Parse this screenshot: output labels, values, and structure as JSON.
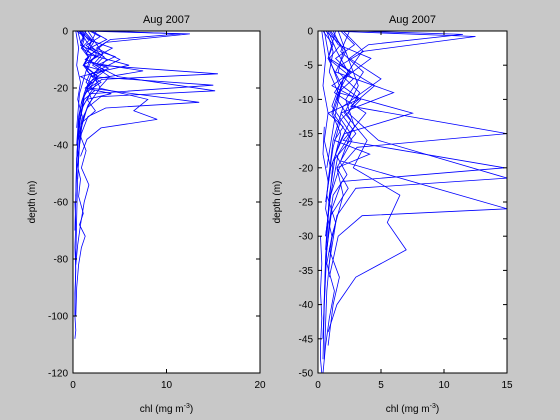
{
  "chart_data": [
    {
      "type": "line",
      "title": "Aug 2007",
      "xlabel": "chl (mg m",
      "xlabel_exponent": "-3",
      "xlabel_suffix": ")",
      "ylabel": "depth (m)",
      "xlim": [
        0,
        20
      ],
      "ylim": [
        -120,
        0
      ],
      "xticks": [
        0,
        10,
        20
      ],
      "yticks": [
        0,
        -20,
        -40,
        -60,
        -80,
        -100,
        -120
      ],
      "line_color": "#0000ff",
      "grid": false,
      "series": [
        {
          "x": [
            0.6,
            1.8,
            0.9,
            2.6,
            1.1,
            3.2,
            0.8,
            2.0,
            1.3,
            4.1,
            1.5,
            2.4,
            1.0,
            0.7,
            0.5,
            0.4,
            0.3,
            0.2
          ],
          "y": [
            0,
            -3,
            -6,
            -9,
            -12,
            -14,
            -16,
            -18,
            -20,
            -22,
            -24,
            -28,
            -32,
            -40,
            -50,
            -65,
            -80,
            -100
          ]
        },
        {
          "x": [
            1.0,
            2.2,
            1.4,
            6.0,
            1.8,
            3.0,
            1.2,
            0.9,
            0.6,
            0.4,
            0.3
          ],
          "y": [
            0,
            -4,
            -8,
            -12,
            -15,
            -18,
            -22,
            -28,
            -36,
            -48,
            -60
          ]
        },
        {
          "x": [
            0.4,
            1.2,
            0.8,
            2.8,
            1.6,
            7.5,
            2.1,
            1.4,
            0.9,
            0.6,
            0.4,
            0.2
          ],
          "y": [
            0,
            -2,
            -5,
            -8,
            -11,
            -14,
            -17,
            -20,
            -25,
            -32,
            -45,
            -70
          ]
        },
        {
          "x": [
            2.0,
            3.6,
            1.8,
            4.5,
            2.6,
            15.5,
            3.1,
            1.7,
            1.0,
            0.6,
            0.4
          ],
          "y": [
            0,
            -3,
            -6,
            -9,
            -12,
            -15,
            -17,
            -20,
            -24,
            -30,
            -40
          ]
        },
        {
          "x": [
            0.8,
            1.5,
            2.4,
            1.3,
            3.8,
            2.0,
            15.0,
            1.9,
            1.1,
            0.7,
            0.4,
            0.3
          ],
          "y": [
            0,
            -4,
            -7,
            -10,
            -13,
            -16,
            -19,
            -22,
            -26,
            -32,
            -45,
            -58
          ]
        },
        {
          "x": [
            1.2,
            2.0,
            1.6,
            3.3,
            2.4,
            4.8,
            15.2,
            3.0,
            1.5,
            0.8,
            0.5
          ],
          "y": [
            0,
            -3,
            -6,
            -9,
            -12,
            -16,
            -21,
            -23,
            -27,
            -35,
            -48
          ]
        },
        {
          "x": [
            0.5,
            0.9,
            1.7,
            1.1,
            2.6,
            1.8,
            13.5,
            3.5,
            1.6,
            0.9,
            0.5
          ],
          "y": [
            0,
            -5,
            -9,
            -12,
            -16,
            -20,
            -25,
            -27,
            -30,
            -36,
            -44
          ]
        },
        {
          "x": [
            1.6,
            2.4,
            3.2,
            2.1,
            3.9,
            2.8,
            8.0,
            6.5,
            9.0,
            3.0,
            1.5,
            0.8
          ],
          "y": [
            0,
            -4,
            -8,
            -12,
            -16,
            -20,
            -24,
            -28,
            -31,
            -34,
            -38,
            -44
          ]
        },
        {
          "x": [
            3.0,
            11.5,
            4.0,
            2.5,
            5.0,
            2.0,
            1.2,
            0.8,
            0.5
          ],
          "y": [
            0,
            -1,
            -3,
            -6,
            -10,
            -15,
            -22,
            -30,
            -40
          ]
        },
        {
          "x": [
            1.0,
            12.5,
            3.5,
            2.0,
            1.4,
            0.7,
            0.4
          ],
          "y": [
            0,
            -1,
            -4,
            -8,
            -14,
            -22,
            -34
          ]
        },
        {
          "x": [
            0.7,
            1.2,
            0.9,
            1.6,
            1.1,
            1.8,
            1.4,
            2.3,
            1.2,
            0.9,
            0.6,
            0.4
          ],
          "y": [
            0,
            -3,
            -6,
            -9,
            -12,
            -15,
            -18,
            -21,
            -24,
            -28,
            -34,
            -45
          ]
        },
        {
          "x": [
            1.4,
            0.8,
            1.9,
            1.2,
            2.7,
            1.5,
            2.0,
            1.1,
            0.7,
            0.5
          ],
          "y": [
            0,
            -4,
            -8,
            -12,
            -16,
            -20,
            -24,
            -30,
            -38,
            -52
          ]
        },
        {
          "x": [
            0.3,
            0.6,
            0.4,
            0.8,
            0.5,
            1.0,
            0.7,
            1.4,
            0.9,
            1.7,
            1.2,
            0.8,
            0.5,
            0.3
          ],
          "y": [
            0,
            -6,
            -12,
            -18,
            -24,
            -30,
            -36,
            -42,
            -48,
            -54,
            -60,
            -68,
            -75,
            -82
          ]
        },
        {
          "x": [
            0.5,
            0.4,
            0.8,
            0.6,
            1.1,
            0.7,
            1.3,
            0.9,
            0.6,
            0.4,
            0.3
          ],
          "y": [
            -40,
            -46,
            -52,
            -58,
            -64,
            -68,
            -72,
            -76,
            -82,
            -90,
            -100
          ]
        },
        {
          "x": [
            0.2,
            0.3,
            0.2,
            0.3,
            0.2,
            0.2,
            0.3,
            0.2
          ],
          "y": [
            -60,
            -68,
            -76,
            -84,
            -92,
            -100,
            -105,
            -108
          ]
        },
        {
          "x": [
            2.5,
            1.8,
            3.6,
            2.2,
            2.9,
            1.6,
            1.0,
            0.6
          ],
          "y": [
            0,
            -5,
            -10,
            -15,
            -20,
            -26,
            -32,
            -38
          ]
        },
        {
          "x": [
            1.8,
            2.9,
            1.4,
            2.5,
            1.9,
            3.4,
            1.8,
            1.2,
            0.8
          ],
          "y": [
            0,
            -2,
            -5,
            -8,
            -11,
            -14,
            -18,
            -23,
            -30
          ]
        },
        {
          "x": [
            0.9,
            1.6,
            4.2,
            2.0,
            1.5,
            2.6,
            1.8,
            1.0,
            0.6
          ],
          "y": [
            0,
            -3,
            -6,
            -10,
            -14,
            -18,
            -22,
            -27,
            -33
          ]
        }
      ]
    },
    {
      "type": "line",
      "title": "Aug 2007",
      "xlabel": "chl (mg m",
      "xlabel_exponent": "-3",
      "xlabel_suffix": ")",
      "ylabel": "depth (m)",
      "xlim": [
        0,
        15
      ],
      "ylim": [
        -50,
        0
      ],
      "xticks": [
        0,
        5,
        10,
        15
      ],
      "yticks": [
        0,
        -5,
        -10,
        -15,
        -20,
        -25,
        -30,
        -35,
        -40,
        -45,
        -50
      ],
      "line_color": "#0000ff",
      "grid": false,
      "series": [
        {
          "x": [
            0.6,
            1.8,
            0.9,
            2.6,
            1.1,
            3.2,
            0.8,
            2.0,
            1.3,
            4.1,
            1.5,
            2.4,
            1.0,
            0.7,
            0.5,
            0.4
          ],
          "y": [
            0,
            -2,
            -4,
            -6,
            -8,
            -10,
            -12,
            -14,
            -16,
            -18,
            -20,
            -23,
            -27,
            -32,
            -40,
            -48
          ]
        },
        {
          "x": [
            1.0,
            2.2,
            1.4,
            6.0,
            1.8,
            3.0,
            1.2,
            0.9,
            0.6,
            0.4
          ],
          "y": [
            0,
            -3,
            -6,
            -9,
            -12,
            -15,
            -19,
            -25,
            -33,
            -45
          ]
        },
        {
          "x": [
            0.4,
            1.2,
            0.8,
            2.8,
            1.6,
            7.5,
            2.1,
            1.4,
            0.9,
            0.6
          ],
          "y": [
            0,
            -2,
            -4,
            -7,
            -9,
            -12,
            -15,
            -18,
            -24,
            -32
          ]
        },
        {
          "x": [
            2.0,
            3.6,
            1.8,
            4.5,
            2.6,
            15.0,
            3.1,
            1.7,
            1.0,
            0.6
          ],
          "y": [
            0,
            -3,
            -5,
            -8,
            -11,
            -15,
            -17,
            -20,
            -24,
            -30
          ]
        },
        {
          "x": [
            0.8,
            1.5,
            2.4,
            1.3,
            3.8,
            2.0,
            14.8,
            1.9,
            1.1,
            0.7
          ],
          "y": [
            0,
            -3,
            -6,
            -9,
            -12,
            -16,
            -20,
            -22,
            -26,
            -32
          ]
        },
        {
          "x": [
            1.2,
            2.0,
            1.6,
            3.3,
            2.4,
            4.8,
            15.0,
            3.0,
            1.5,
            0.8
          ],
          "y": [
            0,
            -3,
            -6,
            -9,
            -12,
            -16,
            -21.5,
            -23,
            -27,
            -35
          ]
        },
        {
          "x": [
            0.5,
            0.9,
            1.7,
            1.1,
            2.6,
            1.8,
            15.0,
            3.5,
            1.6,
            0.9
          ],
          "y": [
            0,
            -4,
            -8,
            -11,
            -15,
            -19,
            -26,
            -27,
            -30,
            -36
          ]
        },
        {
          "x": [
            1.6,
            2.4,
            3.2,
            2.1,
            3.9,
            2.8,
            6.5,
            5.5,
            7.0,
            3.0,
            1.5,
            0.8
          ],
          "y": [
            0,
            -4,
            -8,
            -12,
            -16,
            -20,
            -24,
            -28,
            -32,
            -36,
            -40,
            -44
          ]
        },
        {
          "x": [
            3.0,
            11.5,
            4.0,
            2.5,
            5.0,
            2.0,
            1.2,
            0.8
          ],
          "y": [
            0,
            -0.5,
            -2,
            -4,
            -7,
            -11,
            -16,
            -22
          ]
        },
        {
          "x": [
            1.0,
            12.5,
            3.5,
            2.0,
            1.4,
            0.7
          ],
          "y": [
            0,
            -0.8,
            -3,
            -7,
            -12,
            -20
          ]
        },
        {
          "x": [
            0.7,
            1.2,
            0.9,
            1.6,
            1.1,
            1.8,
            1.4,
            2.3,
            1.2,
            0.9,
            0.6,
            0.4
          ],
          "y": [
            0,
            -3,
            -6,
            -9,
            -12,
            -15,
            -18,
            -21,
            -24,
            -28,
            -34,
            -45
          ]
        },
        {
          "x": [
            1.4,
            0.8,
            1.9,
            1.2,
            2.7,
            1.5,
            2.0,
            1.1,
            0.7,
            0.5
          ],
          "y": [
            0,
            -4,
            -8,
            -12,
            -16,
            -20,
            -24,
            -30,
            -38,
            -48
          ]
        },
        {
          "x": [
            0.3,
            0.6,
            0.4,
            0.8,
            0.5,
            1.0,
            0.7,
            1.4,
            0.9,
            1.7,
            1.2,
            0.8
          ],
          "y": [
            0,
            -4,
            -8,
            -12,
            -16,
            -20,
            -24,
            -28,
            -32,
            -36,
            -40,
            -46
          ]
        },
        {
          "x": [
            0.5,
            0.4,
            0.8,
            0.6,
            1.1,
            0.7,
            1.3,
            0.9,
            0.6,
            0.4
          ],
          "y": [
            -14,
            -18,
            -22,
            -26,
            -30,
            -34,
            -38,
            -42,
            -46,
            -50
          ]
        },
        {
          "x": [
            0.2,
            0.3,
            0.2,
            0.3,
            0.2,
            0.2,
            0.3
          ],
          "y": [
            -30,
            -34,
            -38,
            -42,
            -46,
            -48,
            -50
          ]
        },
        {
          "x": [
            2.5,
            1.8,
            3.6,
            2.2,
            2.9,
            1.6,
            1.0,
            0.6
          ],
          "y": [
            0,
            -3,
            -6,
            -10,
            -14,
            -18,
            -24,
            -30
          ]
        },
        {
          "x": [
            1.8,
            2.9,
            1.4,
            2.5,
            1.9,
            3.4,
            1.8,
            1.2,
            0.8
          ],
          "y": [
            0,
            -2,
            -4,
            -6,
            -8,
            -10,
            -13,
            -17,
            -22
          ]
        },
        {
          "x": [
            0.9,
            1.6,
            4.2,
            2.0,
            1.5,
            2.6,
            1.8,
            1.0,
            0.6
          ],
          "y": [
            0,
            -2,
            -4,
            -7,
            -10,
            -13,
            -16,
            -20,
            -25
          ]
        }
      ]
    }
  ]
}
